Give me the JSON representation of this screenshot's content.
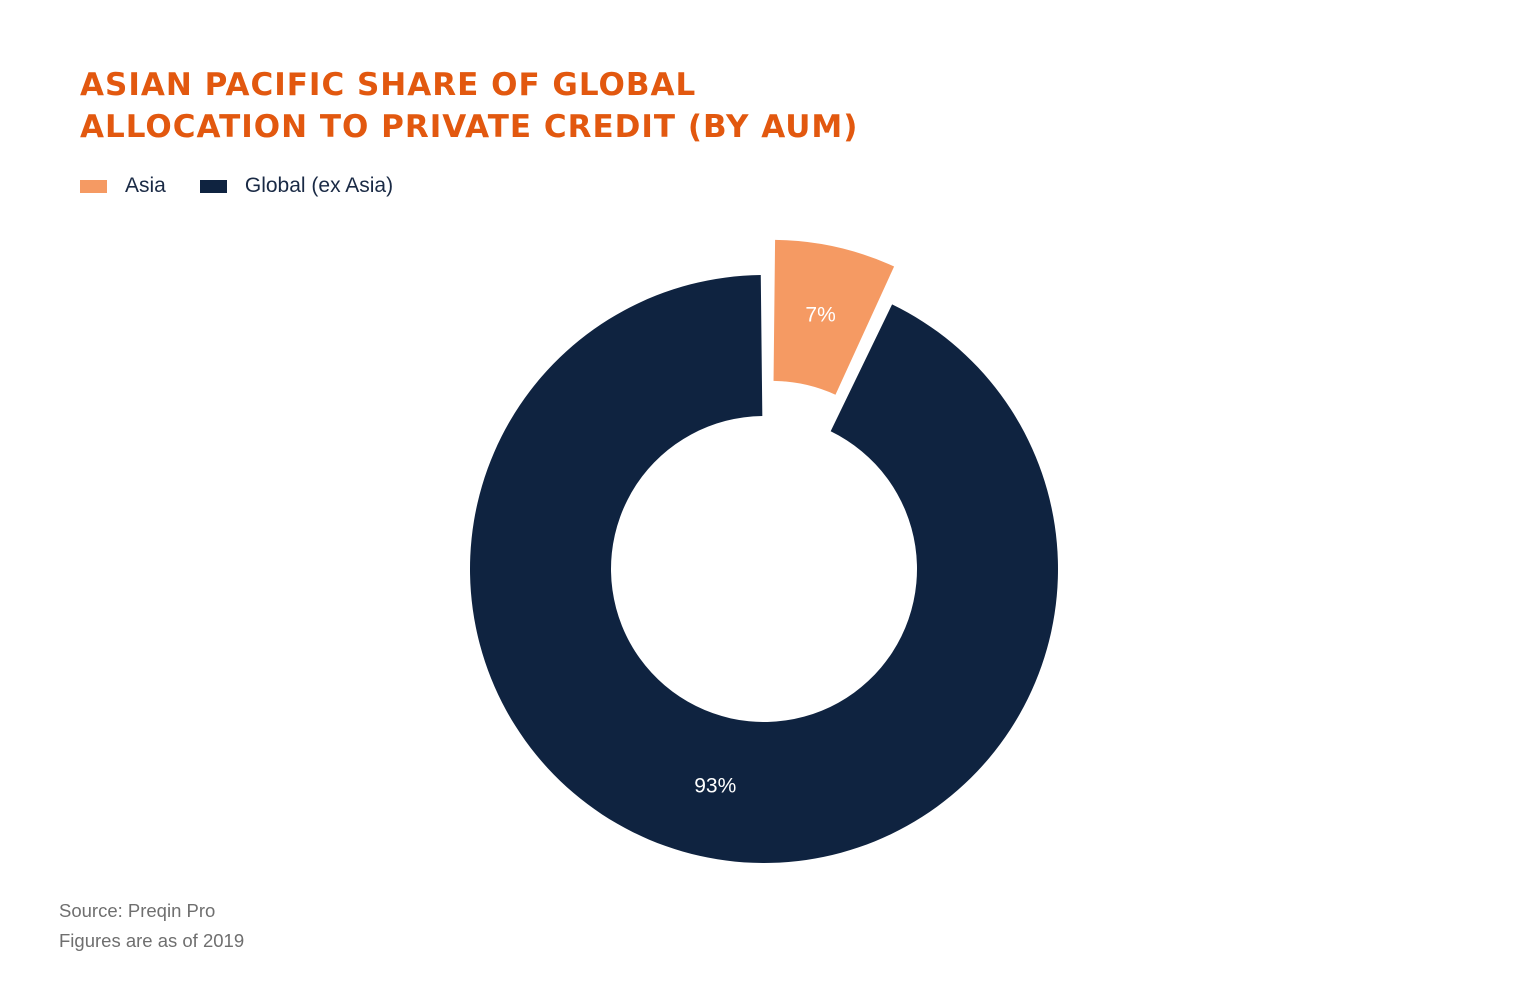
{
  "chart_data": {
    "type": "pie",
    "title": "ASIAN PACIFIC SHARE OF GLOBAL ALLOCATION TO PRIVATE CREDIT (BY AUM)",
    "title_lines": [
      "ASIAN PACIFIC SHARE OF GLOBAL",
      "ALLOCATION TO PRIVATE CREDIT (BY AUM)"
    ],
    "style": "donut",
    "categories": [
      "Asia",
      "Global (ex Asia)"
    ],
    "values": [
      7,
      93
    ],
    "unit": "%",
    "data_labels": [
      "7%",
      "93%"
    ],
    "colors": [
      "#F59A63",
      "#0F2340"
    ],
    "exploded": [
      "Asia"
    ],
    "legend": {
      "position": "top-left",
      "entries": [
        "Asia",
        "Global (ex Asia)"
      ]
    }
  },
  "colors": {
    "title": "#E2580F",
    "legend_text": "#1a2a45",
    "footnote_text": "#6f6f6f"
  },
  "footnotes": {
    "source": "Source: Preqin Pro",
    "date_note": "Figures are as of 2019"
  }
}
